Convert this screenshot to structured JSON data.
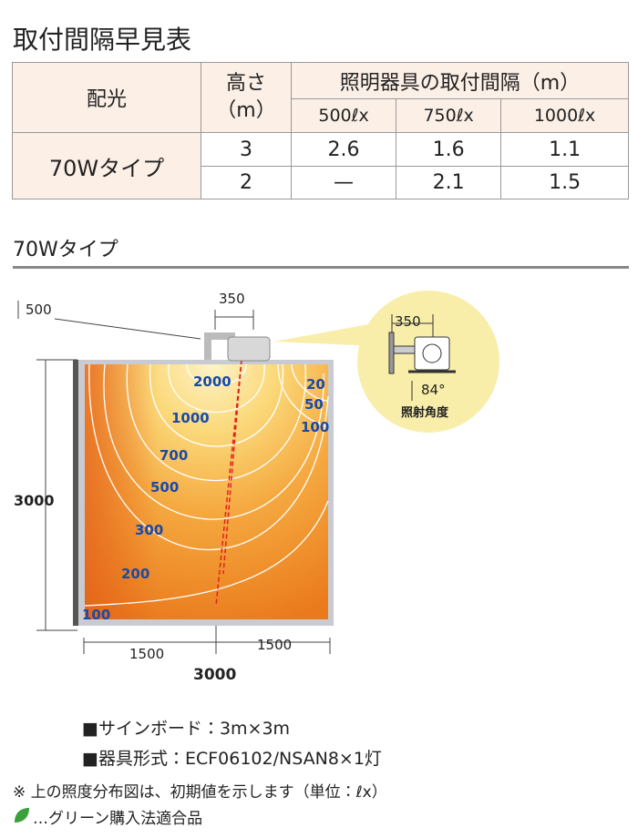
{
  "header": {
    "title": "取付間隔早見表"
  },
  "table": {
    "header": {
      "light_distribution": "配光",
      "height": [
        "高さ",
        "（m）"
      ],
      "spacing": "照明器具の取付間隔（m）",
      "levels": [
        "500ℓx",
        "750ℓx",
        "1000ℓx"
      ]
    },
    "type": "70Wタイプ",
    "rows": [
      [
        "3",
        "2.6",
        "1.6",
        "1.1"
      ],
      [
        "2",
        "—",
        "2.1",
        "1.5"
      ]
    ]
  },
  "section": {
    "title": "70Wタイプ"
  },
  "diagram": {
    "top_offset": "500",
    "fixture_width": "350",
    "height": "3000",
    "half_widths": [
      "1500",
      "1500"
    ],
    "width": "3000",
    "contours": [
      "2000",
      "1000",
      "700",
      "500",
      "300",
      "200",
      "100",
      "20",
      "50",
      "100"
    ],
    "inset": {
      "width": "350",
      "angle": "84°",
      "angle_label": "照射角度"
    }
  },
  "notes": [
    "■サインボード：3m×3m",
    "■器具形式：ECF06102/NSAN8×1灯",
    "※ 上の照度分布図は、初期値を示します（単位：ℓx）",
    "…グリーン購入法適合品"
  ]
}
